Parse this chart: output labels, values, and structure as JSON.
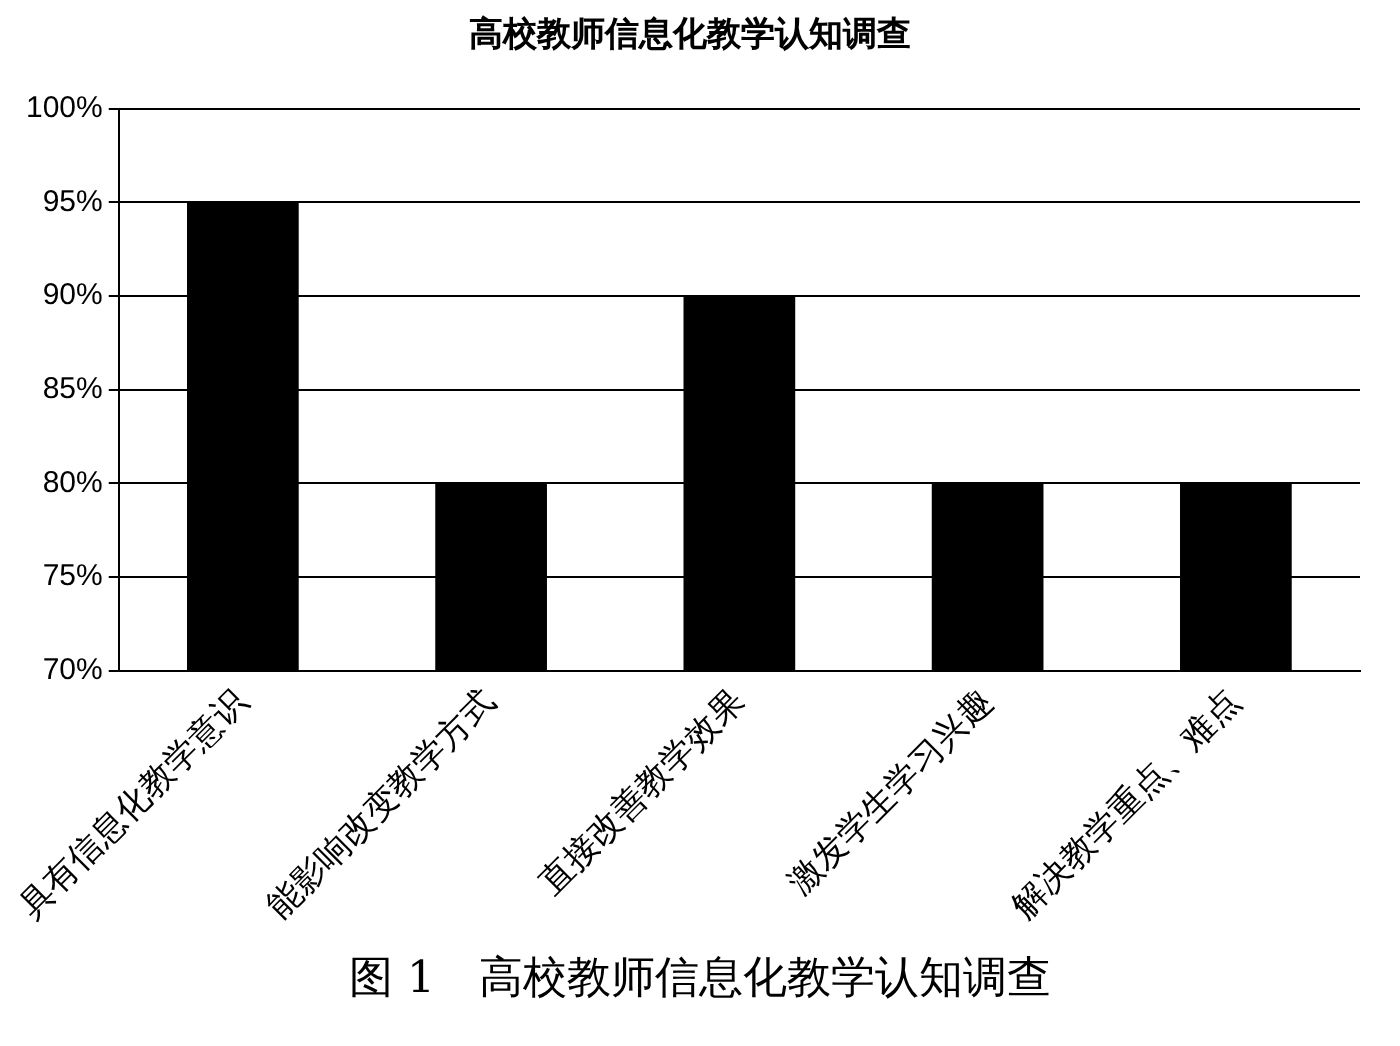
{
  "chart_data": {
    "type": "bar",
    "title": "高校教师信息化教学认知调查",
    "categories": [
      "具有信息化教学意识",
      "能影响改变教学方式",
      "直接改善教学效果",
      "激发学生学习兴趣",
      "解决教学重点、难点"
    ],
    "values": [
      95,
      80,
      90,
      80,
      80
    ],
    "color": "#000000",
    "ylim": [
      70,
      100
    ],
    "yticks": [
      {
        "value": 70,
        "label": "70%"
      },
      {
        "value": 75,
        "label": "75%"
      },
      {
        "value": 80,
        "label": "80%"
      },
      {
        "value": 85,
        "label": "85%"
      },
      {
        "value": 90,
        "label": "90%"
      },
      {
        "value": 95,
        "label": "95%"
      },
      {
        "value": 100,
        "label": "100%"
      }
    ],
    "grid": "y",
    "legend": false,
    "annotations": [
      "图 1　高校教师信息化教学认知调查"
    ]
  }
}
